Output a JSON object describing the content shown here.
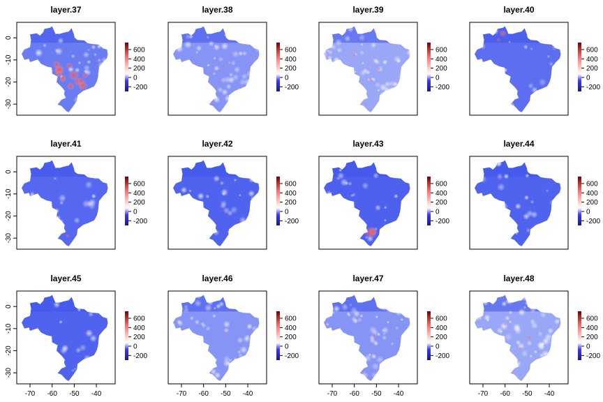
{
  "figure": {
    "panels": [
      {
        "title": "layer.37",
        "pattern": "hotcenter"
      },
      {
        "title": "layer.38",
        "pattern": "light"
      },
      {
        "title": "layer.39",
        "pattern": "lightest"
      },
      {
        "title": "layer.40",
        "pattern": "northhot"
      },
      {
        "title": "layer.41",
        "pattern": "southhot"
      },
      {
        "title": "layer.42",
        "pattern": "blue"
      },
      {
        "title": "layer.43",
        "pattern": "southblob"
      },
      {
        "title": "layer.44",
        "pattern": "blue"
      },
      {
        "title": "layer.45",
        "pattern": "blue"
      },
      {
        "title": "layer.46",
        "pattern": "light"
      },
      {
        "title": "layer.47",
        "pattern": "light"
      },
      {
        "title": "layer.48",
        "pattern": "lightest"
      }
    ],
    "x_ticks": [
      "-70",
      "-60",
      "-50",
      "-40"
    ],
    "y_ticks": [
      "0",
      "-10",
      "-20",
      "-30"
    ],
    "colorbar_ticks": [
      "600",
      "400",
      "200",
      "0",
      "-200"
    ],
    "colors": {
      "low": "#0000cc",
      "mid": "#ffffff",
      "high": "#cc0000",
      "map_base": "#5a6ef0",
      "frame": "#000000"
    }
  }
}
